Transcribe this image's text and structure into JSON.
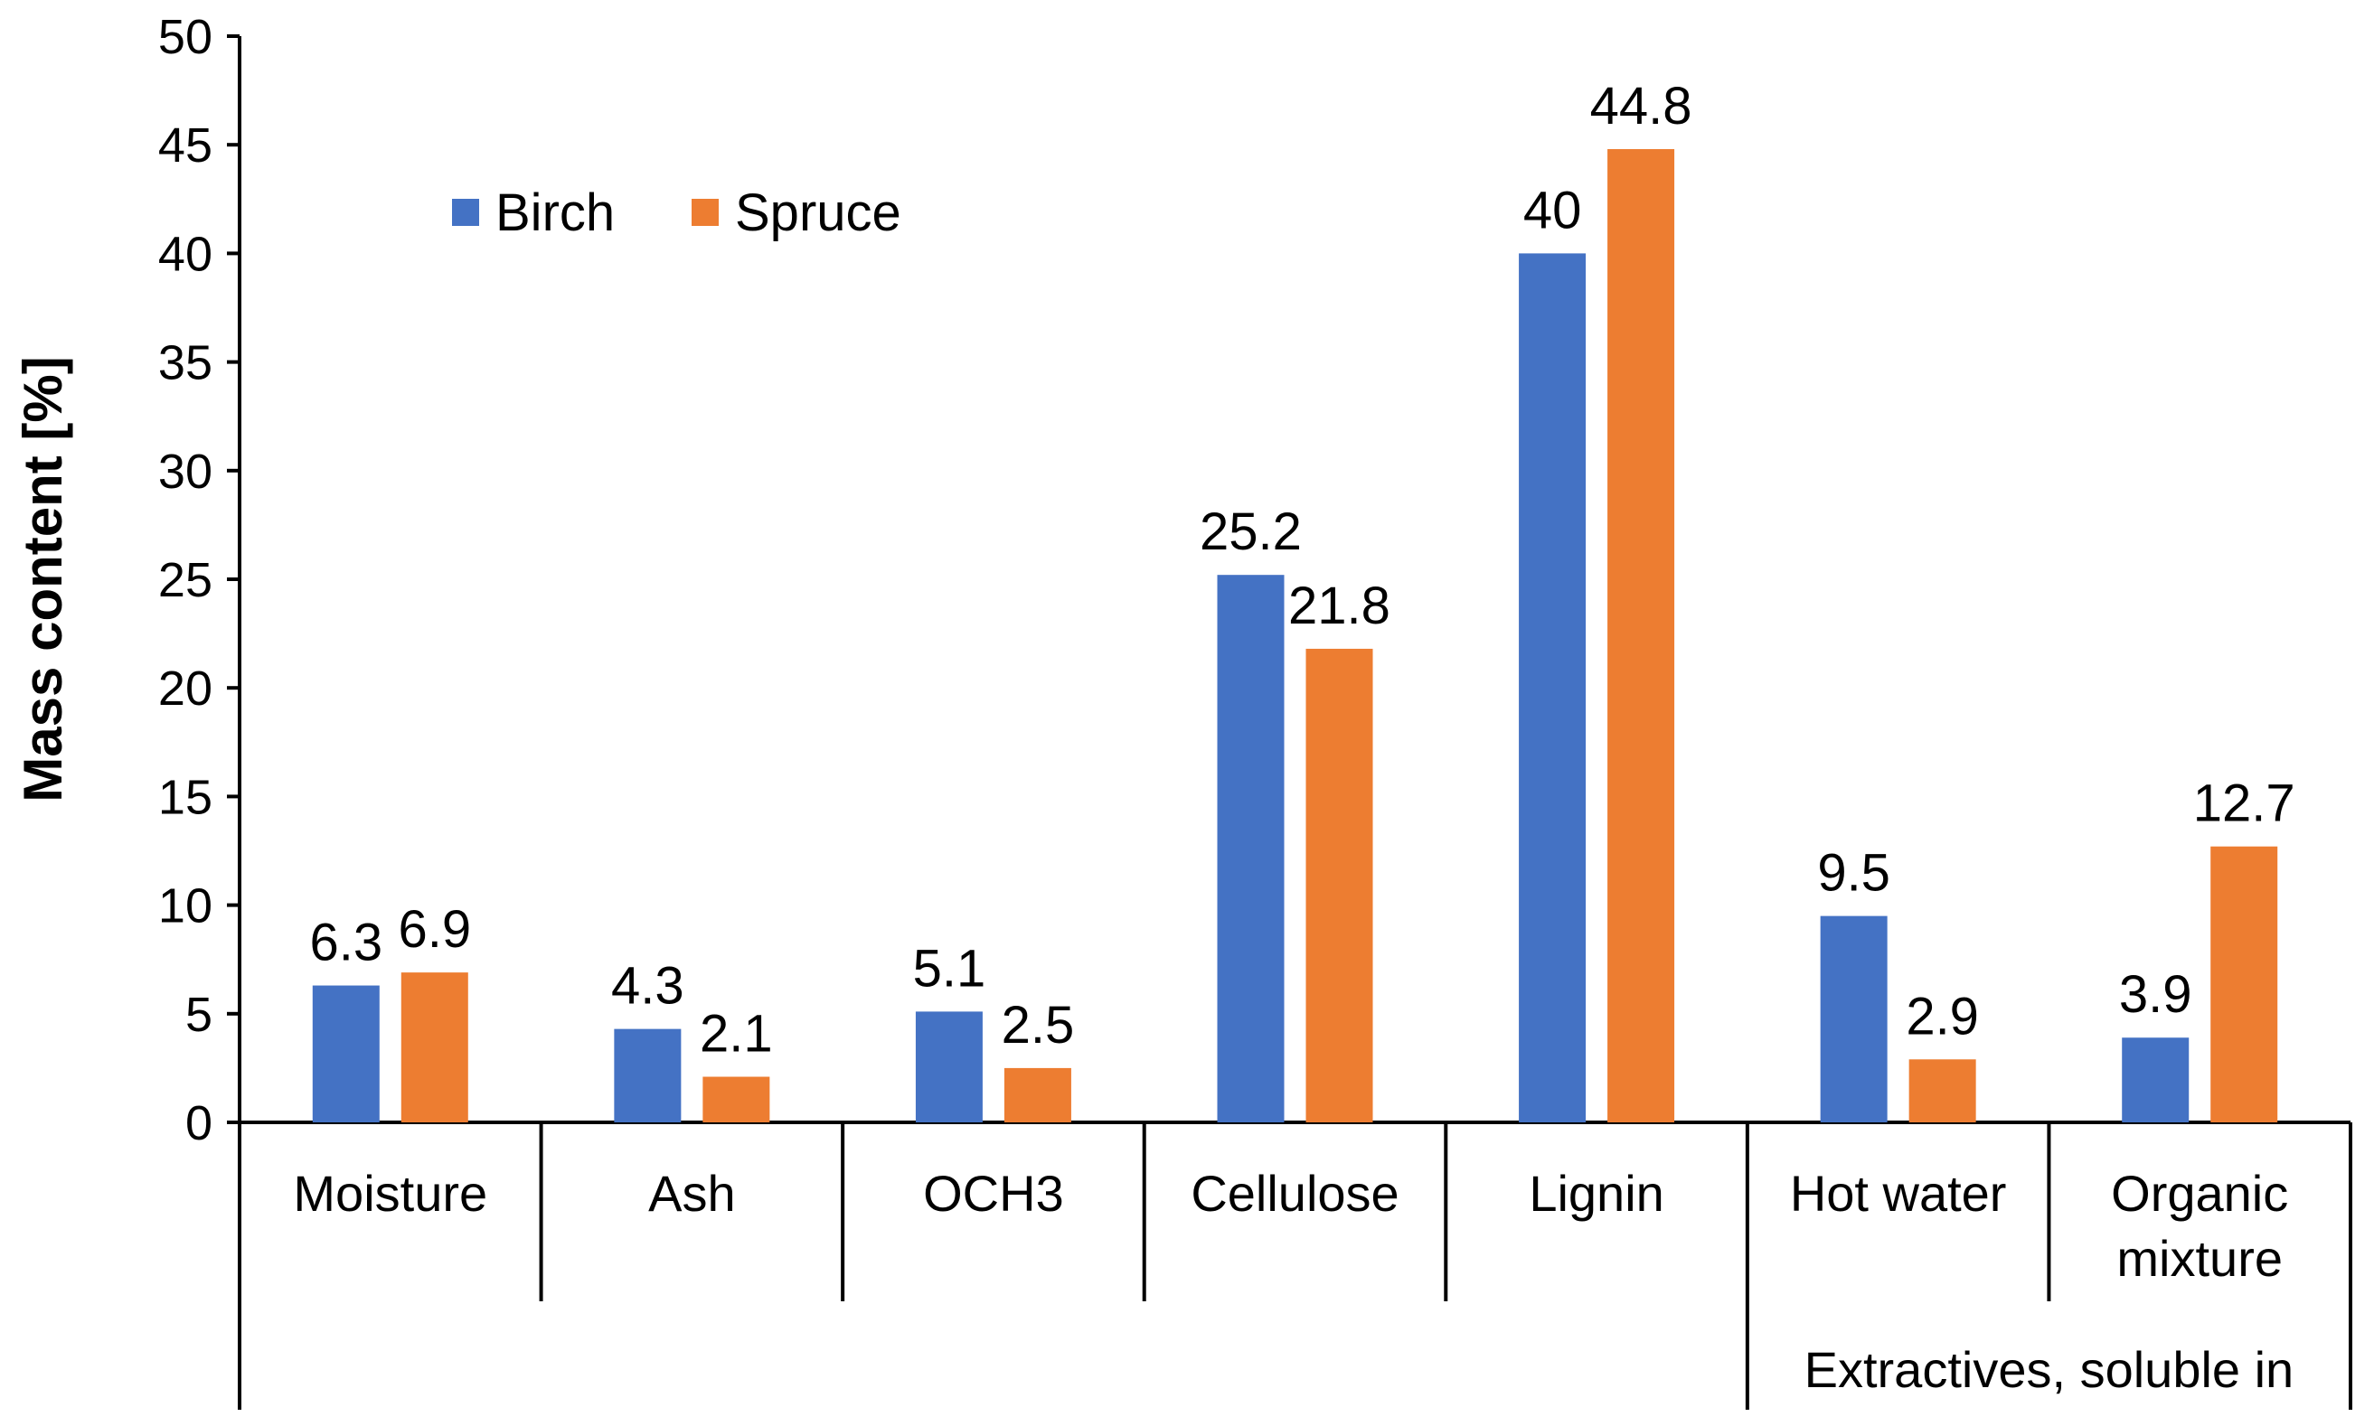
{
  "chart_data": {
    "type": "bar",
    "title": "",
    "xlabel": "",
    "ylabel": "Mass content [%]",
    "ylim": [
      0,
      50
    ],
    "yticks": [
      0,
      5,
      10,
      15,
      20,
      25,
      30,
      35,
      40,
      45,
      50
    ],
    "categories": [
      [
        "Moisture"
      ],
      [
        "Ash"
      ],
      [
        "OCH3"
      ],
      [
        "Cellulose"
      ],
      [
        "Lignin"
      ],
      [
        "Hot water"
      ],
      [
        "Organic",
        "mixture"
      ]
    ],
    "group_label": "Extractives, soluble in",
    "group_categories": [
      "Hot water",
      "Organic mixture"
    ],
    "grid": false,
    "legend_position": "top-left",
    "series": [
      {
        "name": "Birch",
        "color": "#4472C4",
        "values": [
          6.3,
          4.3,
          5.1,
          25.2,
          40,
          9.5,
          3.9
        ],
        "labels": [
          "6.3",
          "4.3",
          "5.1",
          "25.2",
          "40",
          "9.5",
          "3.9"
        ]
      },
      {
        "name": "Spruce",
        "color": "#ED7D31",
        "values": [
          6.9,
          2.1,
          2.5,
          21.8,
          44.8,
          2.9,
          12.7
        ],
        "labels": [
          "6.9",
          "2.1",
          "2.5",
          "21.8",
          "44.8",
          "2.9",
          "12.7"
        ]
      }
    ]
  }
}
